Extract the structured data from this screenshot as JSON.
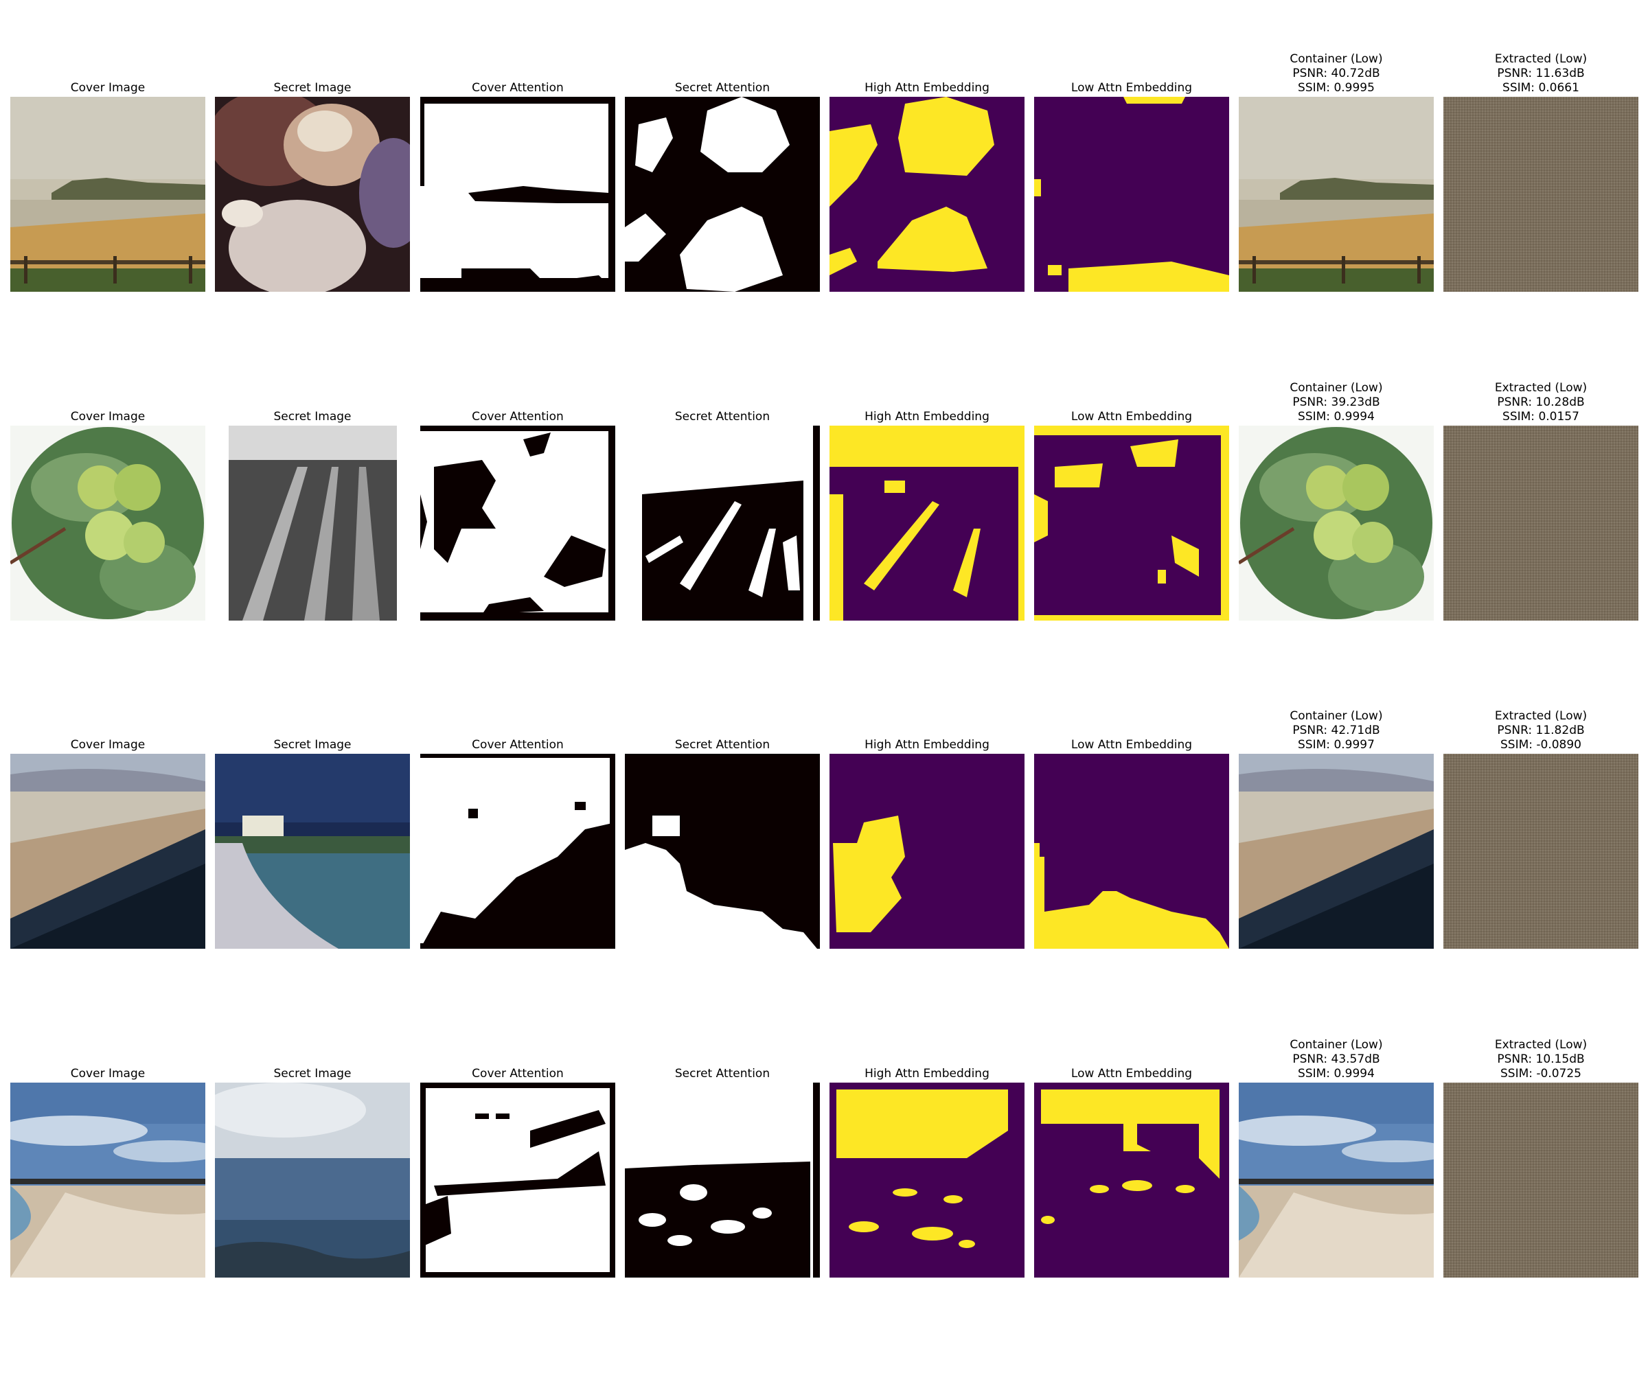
{
  "columns": {
    "cover": "Cover Image",
    "secret": "Secret Image",
    "cover_attn": "Cover Attention",
    "secret_attn": "Secret Attention",
    "high_embed": "High Attn Embedding",
    "low_embed": "Low Attn Embedding"
  },
  "rows": [
    {
      "container": {
        "title": "Container (Low)",
        "psnr": "PSNR: 40.72dB",
        "ssim": "SSIM: 0.9995"
      },
      "extracted": {
        "title": "Extracted (Low)",
        "psnr": "PSNR: 11.63dB",
        "ssim": "SSIM: 0.0661"
      }
    },
    {
      "container": {
        "title": "Container (Low)",
        "psnr": "PSNR: 39.23dB",
        "ssim": "SSIM: 0.9994"
      },
      "extracted": {
        "title": "Extracted (Low)",
        "psnr": "PSNR: 10.28dB",
        "ssim": "SSIM: 0.0157"
      }
    },
    {
      "container": {
        "title": "Container (Low)",
        "psnr": "PSNR: 42.71dB",
        "ssim": "SSIM: 0.9997"
      },
      "extracted": {
        "title": "Extracted (Low)",
        "psnr": "PSNR: 11.82dB",
        "ssim": "SSIM: -0.0890"
      }
    },
    {
      "container": {
        "title": "Container (Low)",
        "psnr": "PSNR: 43.57dB",
        "ssim": "SSIM: 0.9994"
      },
      "extracted": {
        "title": "Extracted (Low)",
        "psnr": "PSNR: 10.15dB",
        "ssim": "SSIM: -0.0725"
      }
    }
  ],
  "colors": {
    "mask_on": "#ffffff",
    "mask_off": "#0a0000",
    "viridis_high": "#fde725",
    "viridis_low": "#440154",
    "extracted_noise": "#7b6e5c"
  }
}
